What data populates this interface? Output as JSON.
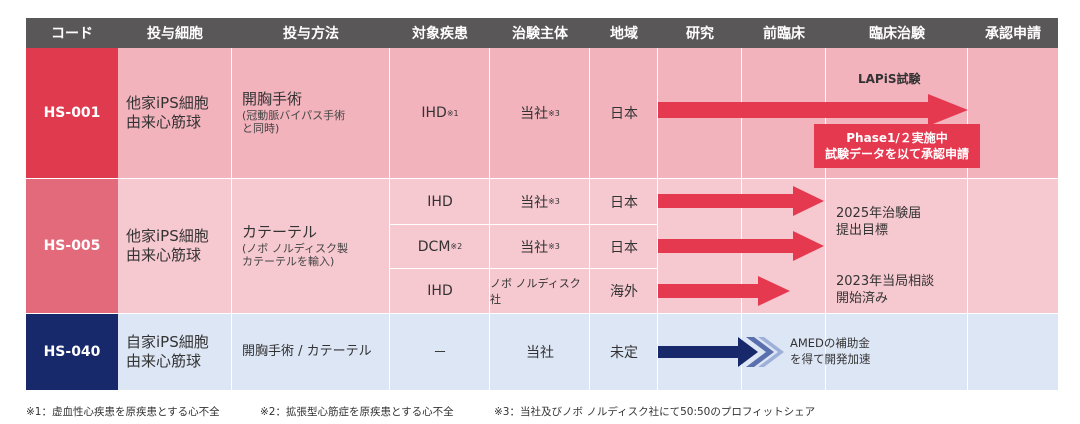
{
  "headers": [
    "コード",
    "投与細胞",
    "投与方法",
    "対象疾患",
    "治験主体",
    "地域",
    "研究",
    "前臨床",
    "臨床治験",
    "承認申請"
  ],
  "rows": [
    {
      "code": "HS-001",
      "cell_line1": "他家iPS細胞",
      "cell_line2": "由来心筋球",
      "method_main": "開胸手術",
      "method_sub1": "(冠動脈バイパス手術",
      "method_sub2": "と同時)",
      "disease": "IHD",
      "disease_note": "※1",
      "sponsor": "当社",
      "sponsor_note": "※3",
      "region": "日本",
      "trial_label": "LAPiS試験",
      "callout_line1": "Phase1/２実施中",
      "callout_line2": "試験データを以て承認申請"
    },
    {
      "code": "HS-005",
      "cell_line1": "他家iPS細胞",
      "cell_line2": "由来心筋球",
      "method_main": "カテーテル",
      "method_sub1": "(ノボ ノルディスク製",
      "method_sub2": "カテーテルを輸入)",
      "subrows": [
        {
          "disease": "IHD",
          "disease_note": "",
          "sponsor": "当社",
          "sponsor_note": "※3",
          "region": "日本"
        },
        {
          "disease": "DCM",
          "disease_note": "※2",
          "sponsor": "当社",
          "sponsor_note": "※3",
          "region": "日本"
        },
        {
          "disease": "IHD",
          "disease_note": "",
          "sponsor": "ノボ ノルディスク社",
          "sponsor_note": "",
          "region": "海外"
        }
      ],
      "status1_line1": "2025年治験届",
      "status1_line2": "提出目標",
      "status2_line1": "2023年当局相談",
      "status2_line2": "開始済み"
    },
    {
      "code": "HS-040",
      "cell_line1": "自家iPS細胞",
      "cell_line2": "由来心筋球",
      "method_main": "開胸手術 / カテーテル",
      "disease": "－",
      "sponsor": "当社",
      "region": "未定",
      "status_line1": "AMEDの補助金",
      "status_line2": "を得て開発加速"
    }
  ],
  "footnotes": [
    "※1：虚血性心疾患を原疾患とする心不全",
    "※2：拡張型心筋症を原疾患とする心不全",
    "※3：当社及びノボ ノルディスク社にて50:50のプロフィットシェア"
  ],
  "colors": {
    "header_bg": "#595757",
    "hs001_code": "#e03a4e",
    "hs005_code": "#e36a7a",
    "hs040_code": "#17286b",
    "pink_band": "#f2b3bd",
    "pink_light": "#f6c8cf",
    "blue_band": "#dde6f5",
    "arrow_red": "#e53950",
    "arrow_navy": "#17286b",
    "callout_red": "#e53950"
  }
}
